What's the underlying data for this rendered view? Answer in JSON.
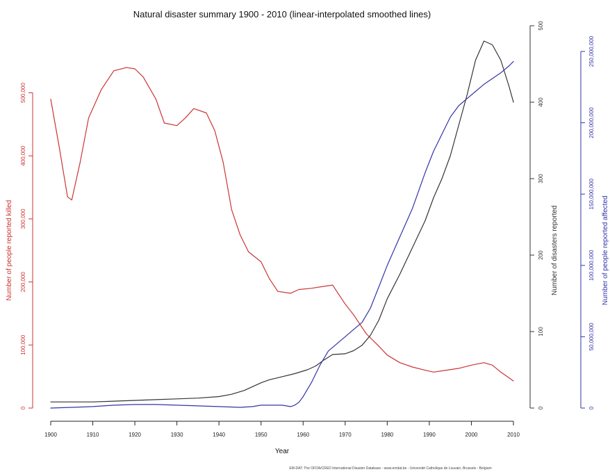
{
  "chart_data": {
    "type": "line",
    "title": "Natural disaster summary 1900 - 2010 (linear-interpolated smoothed lines)",
    "xlabel": "Year",
    "xlim": [
      1900,
      2010
    ],
    "x_ticks": [
      "1900",
      "1910",
      "1920",
      "1930",
      "1940",
      "1950",
      "1960",
      "1970",
      "1980",
      "1990",
      "2000",
      "2010"
    ],
    "source": "EM-DAT: The OFDA/CRED International Disaster Database - www.emdat.be - Université Catholique de Louvain, Brussels - Belgium",
    "axes": {
      "left": {
        "label": "Number of people reported killed",
        "color": "#cc3333",
        "ylim": [
          0,
          600000
        ],
        "tick_values": [
          0,
          100000,
          200000,
          300000,
          400000,
          500000
        ],
        "tick_labels": [
          "0",
          "100,000",
          "200,000",
          "300,000",
          "400,000",
          "500,000"
        ]
      },
      "right": {
        "label": "Number of disasters reported",
        "color": "#333333",
        "ylim": [
          0,
          500
        ],
        "tick_values": [
          0,
          100,
          200,
          300,
          400,
          500
        ],
        "tick_labels": [
          "0",
          "100",
          "200",
          "300",
          "400",
          "500"
        ]
      },
      "far_right": {
        "label": "Number of people reported affected",
        "color": "#3333aa",
        "ylim": [
          0,
          250000000
        ],
        "tick_values": [
          0,
          50000000,
          100000000,
          150000000,
          200000000,
          250000000
        ],
        "tick_labels": [
          "0",
          "50,000,000",
          "100,000,000",
          "150,000,000",
          "200,000,000",
          "250,000,000"
        ]
      }
    },
    "series": [
      {
        "axis": "left",
        "color": "#cc3333",
        "points": [
          [
            1900,
            490000
          ],
          [
            1902,
            415000
          ],
          [
            1904,
            335000
          ],
          [
            1905,
            330000
          ],
          [
            1907,
            390000
          ],
          [
            1909,
            460000
          ],
          [
            1912,
            505000
          ],
          [
            1915,
            535000
          ],
          [
            1918,
            540000
          ],
          [
            1920,
            538000
          ],
          [
            1922,
            525000
          ],
          [
            1925,
            490000
          ],
          [
            1927,
            452000
          ],
          [
            1930,
            448000
          ],
          [
            1932,
            460000
          ],
          [
            1934,
            475000
          ],
          [
            1937,
            468000
          ],
          [
            1939,
            440000
          ],
          [
            1941,
            390000
          ],
          [
            1943,
            315000
          ],
          [
            1945,
            275000
          ],
          [
            1947,
            248000
          ],
          [
            1950,
            232000
          ],
          [
            1952,
            205000
          ],
          [
            1954,
            185000
          ],
          [
            1957,
            182000
          ],
          [
            1959,
            188000
          ],
          [
            1962,
            190000
          ],
          [
            1965,
            193000
          ],
          [
            1967,
            195000
          ],
          [
            1970,
            165000
          ],
          [
            1972,
            148000
          ],
          [
            1975,
            118000
          ],
          [
            1978,
            98000
          ],
          [
            1980,
            84000
          ],
          [
            1983,
            72000
          ],
          [
            1986,
            65000
          ],
          [
            1989,
            60000
          ],
          [
            1991,
            57000
          ],
          [
            1994,
            60000
          ],
          [
            1997,
            63000
          ],
          [
            2000,
            68000
          ],
          [
            2003,
            72000
          ],
          [
            2005,
            68000
          ],
          [
            2007,
            57000
          ],
          [
            2010,
            43000
          ]
        ]
      },
      {
        "axis": "right",
        "color": "#333333",
        "points": [
          [
            1900,
            8
          ],
          [
            1905,
            8
          ],
          [
            1910,
            8
          ],
          [
            1915,
            9
          ],
          [
            1920,
            10
          ],
          [
            1925,
            11
          ],
          [
            1930,
            12
          ],
          [
            1935,
            13
          ],
          [
            1940,
            15
          ],
          [
            1943,
            18
          ],
          [
            1946,
            23
          ],
          [
            1948,
            28
          ],
          [
            1950,
            33
          ],
          [
            1952,
            37
          ],
          [
            1955,
            41
          ],
          [
            1958,
            45
          ],
          [
            1961,
            50
          ],
          [
            1963,
            55
          ],
          [
            1965,
            63
          ],
          [
            1967,
            70
          ],
          [
            1970,
            71
          ],
          [
            1972,
            75
          ],
          [
            1974,
            82
          ],
          [
            1976,
            95
          ],
          [
            1978,
            115
          ],
          [
            1980,
            143
          ],
          [
            1983,
            175
          ],
          [
            1986,
            210
          ],
          [
            1989,
            245
          ],
          [
            1991,
            275
          ],
          [
            1993,
            300
          ],
          [
            1995,
            330
          ],
          [
            1997,
            370
          ],
          [
            1999,
            410
          ],
          [
            2001,
            455
          ],
          [
            2003,
            480
          ],
          [
            2005,
            475
          ],
          [
            2007,
            455
          ],
          [
            2009,
            420
          ],
          [
            2010,
            400
          ]
        ]
      },
      {
        "axis": "far_right",
        "color": "#3333aa",
        "points": [
          [
            1900,
            0
          ],
          [
            1905,
            500000
          ],
          [
            1910,
            1000000
          ],
          [
            1915,
            2000000
          ],
          [
            1920,
            2500000
          ],
          [
            1925,
            2500000
          ],
          [
            1930,
            2000000
          ],
          [
            1935,
            1500000
          ],
          [
            1940,
            1000000
          ],
          [
            1945,
            500000
          ],
          [
            1948,
            1000000
          ],
          [
            1950,
            2000000
          ],
          [
            1953,
            2000000
          ],
          [
            1955,
            2000000
          ],
          [
            1957,
            1000000
          ],
          [
            1958,
            2000000
          ],
          [
            1959,
            4000000
          ],
          [
            1960,
            8000000
          ],
          [
            1962,
            18000000
          ],
          [
            1964,
            30000000
          ],
          [
            1966,
            40000000
          ],
          [
            1968,
            45000000
          ],
          [
            1970,
            50000000
          ],
          [
            1972,
            55000000
          ],
          [
            1974,
            60000000
          ],
          [
            1976,
            70000000
          ],
          [
            1978,
            85000000
          ],
          [
            1980,
            100000000
          ],
          [
            1983,
            120000000
          ],
          [
            1986,
            140000000
          ],
          [
            1989,
            165000000
          ],
          [
            1991,
            180000000
          ],
          [
            1993,
            192000000
          ],
          [
            1995,
            204000000
          ],
          [
            1997,
            212000000
          ],
          [
            1999,
            217000000
          ],
          [
            2001,
            222000000
          ],
          [
            2003,
            227000000
          ],
          [
            2005,
            231000000
          ],
          [
            2007,
            235000000
          ],
          [
            2009,
            240000000
          ],
          [
            2010,
            243000000
          ]
        ]
      }
    ]
  }
}
